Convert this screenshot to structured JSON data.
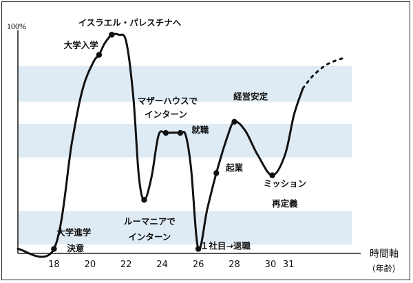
{
  "chart_data": {
    "type": "line",
    "title": "",
    "ylabel": "100%",
    "xlabel": "時間軸",
    "xlabel_unit": "(年齢)",
    "x_ticks": [
      "18",
      "20",
      "22",
      "24",
      "26",
      "28",
      "30",
      "31"
    ],
    "x_range": [
      16,
      35
    ],
    "y_range": [
      0,
      100
    ],
    "bands": [
      [
        68,
        84
      ],
      [
        43,
        58
      ],
      [
        4,
        19
      ]
    ],
    "series": [
      {
        "points": [
          {
            "x": 16.0,
            "y": 2
          },
          {
            "x": 18.0,
            "y": 2
          },
          {
            "x": 19.0,
            "y": 50
          },
          {
            "x": 19.6,
            "y": 74
          },
          {
            "x": 20.2,
            "y": 86
          },
          {
            "x": 20.5,
            "y": 89
          },
          {
            "x": 20.8,
            "y": 94
          },
          {
            "x": 21.2,
            "y": 98
          },
          {
            "x": 21.6,
            "y": 98
          },
          {
            "x": 22.0,
            "y": 95
          },
          {
            "x": 22.4,
            "y": 70
          },
          {
            "x": 22.7,
            "y": 35
          },
          {
            "x": 23.0,
            "y": 24
          },
          {
            "x": 23.4,
            "y": 34
          },
          {
            "x": 23.8,
            "y": 53
          },
          {
            "x": 24.2,
            "y": 54
          },
          {
            "x": 25.0,
            "y": 54
          },
          {
            "x": 25.3,
            "y": 53
          },
          {
            "x": 25.6,
            "y": 38
          },
          {
            "x": 26.0,
            "y": 2
          },
          {
            "x": 26.5,
            "y": 20
          },
          {
            "x": 27.0,
            "y": 36
          },
          {
            "x": 27.6,
            "y": 52
          },
          {
            "x": 28.0,
            "y": 59
          },
          {
            "x": 28.6,
            "y": 55
          },
          {
            "x": 29.3,
            "y": 44
          },
          {
            "x": 30.1,
            "y": 35
          },
          {
            "x": 30.8,
            "y": 44
          },
          {
            "x": 31.3,
            "y": 62
          },
          {
            "x": 31.8,
            "y": 74
          }
        ],
        "projection": [
          {
            "x": 31.8,
            "y": 74
          },
          {
            "x": 32.4,
            "y": 80
          },
          {
            "x": 33.2,
            "y": 85
          },
          {
            "x": 34.2,
            "y": 88
          }
        ],
        "markers": [
          {
            "x": 18.0,
            "y": 2
          },
          {
            "x": 20.5,
            "y": 89
          },
          {
            "x": 21.2,
            "y": 98
          },
          {
            "x": 23.0,
            "y": 24
          },
          {
            "x": 24.2,
            "y": 54
          },
          {
            "x": 25.0,
            "y": 54
          },
          {
            "x": 26.0,
            "y": 2
          },
          {
            "x": 27.0,
            "y": 36
          },
          {
            "x": 28.0,
            "y": 59
          },
          {
            "x": 30.1,
            "y": 35
          }
        ]
      }
    ],
    "annotations": [
      {
        "text": "イスラエル・パレスチナへ",
        "x": 22.2,
        "y": 102
      },
      {
        "text": "大学入学",
        "x": 19.5,
        "y": 92
      },
      {
        "text": "マザーハウスで",
        "x": 24.3,
        "y": 67
      },
      {
        "text": "インターン",
        "x": 24.2,
        "y": 61
      },
      {
        "text": "就職",
        "x": 26.1,
        "y": 54
      },
      {
        "text": "経営安定",
        "x": 28.9,
        "y": 69
      },
      {
        "text": "起業",
        "x": 28.0,
        "y": 37
      },
      {
        "text": "ミッション",
        "x": 30.8,
        "y": 30
      },
      {
        "text": "再定義",
        "x": 30.8,
        "y": 21
      },
      {
        "text": "ルーマニアで",
        "x": 23.3,
        "y": 13
      },
      {
        "text": "インターン",
        "x": 23.3,
        "y": 6
      },
      {
        "text": "大学進学",
        "x": 19.1,
        "y": 8
      },
      {
        "text": "決意",
        "x": 19.2,
        "y": 1
      },
      {
        "text": "１社目→退職",
        "x": 27.5,
        "y": 2
      }
    ]
  }
}
